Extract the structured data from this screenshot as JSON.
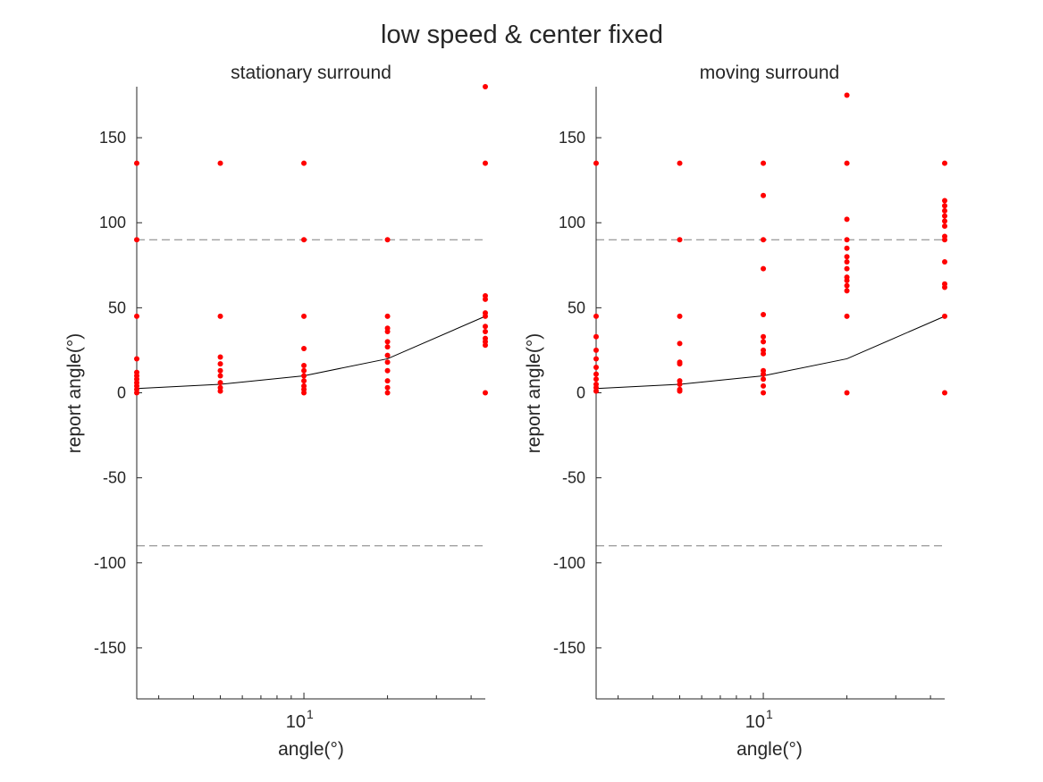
{
  "figure": {
    "title": "low speed & center fixed"
  },
  "style": {
    "point_color": "#ff0000",
    "line_color": "#000000",
    "ref_line_color": "#7f7f7f",
    "axis_color": "#262626"
  },
  "chart_data": [
    {
      "type": "scatter",
      "title": "stationary surround",
      "xlabel": "angle(°)",
      "ylabel": "report angle(°)",
      "xscale": "log",
      "xlim": [
        2.5,
        45
      ],
      "ylim": [
        -180,
        180
      ],
      "yticks": [
        -150,
        -100,
        -50,
        0,
        50,
        100,
        150
      ],
      "xtick_major": {
        "value": 10,
        "base": "10",
        "exponent": "1"
      },
      "grid": false,
      "reference_lines_y": [
        90,
        -90
      ],
      "mean_line": {
        "x": [
          2.5,
          5,
          10,
          20,
          45
        ],
        "y": [
          2.5,
          5,
          10,
          20,
          45
        ]
      },
      "points": [
        [
          2.5,
          135
        ],
        [
          2.5,
          90
        ],
        [
          2.5,
          45
        ],
        [
          2.5,
          20
        ],
        [
          2.5,
          12
        ],
        [
          2.5,
          10
        ],
        [
          2.5,
          8
        ],
        [
          2.5,
          6
        ],
        [
          2.5,
          4
        ],
        [
          2.5,
          2
        ],
        [
          2.5,
          0
        ],
        [
          5,
          135
        ],
        [
          5,
          45
        ],
        [
          5,
          21
        ],
        [
          5,
          17
        ],
        [
          5,
          13
        ],
        [
          5,
          10
        ],
        [
          5,
          6
        ],
        [
          5,
          3
        ],
        [
          5,
          1
        ],
        [
          10,
          135
        ],
        [
          10,
          90
        ],
        [
          10,
          45
        ],
        [
          10,
          26
        ],
        [
          10,
          16
        ],
        [
          10,
          13
        ],
        [
          10,
          10
        ],
        [
          10,
          7
        ],
        [
          10,
          4
        ],
        [
          10,
          2
        ],
        [
          10,
          0
        ],
        [
          20,
          90
        ],
        [
          20,
          45
        ],
        [
          20,
          38
        ],
        [
          20,
          36
        ],
        [
          20,
          30
        ],
        [
          20,
          27
        ],
        [
          20,
          22
        ],
        [
          20,
          18
        ],
        [
          20,
          13
        ],
        [
          20,
          7
        ],
        [
          20,
          3
        ],
        [
          20,
          0
        ],
        [
          45,
          180
        ],
        [
          45,
          135
        ],
        [
          45,
          57
        ],
        [
          45,
          55
        ],
        [
          45,
          47
        ],
        [
          45,
          45
        ],
        [
          45,
          39
        ],
        [
          45,
          36
        ],
        [
          45,
          32
        ],
        [
          45,
          30
        ],
        [
          45,
          28
        ],
        [
          45,
          0
        ]
      ]
    },
    {
      "type": "scatter",
      "title": "moving surround",
      "xlabel": "angle(°)",
      "ylabel": "report angle(°)",
      "xscale": "log",
      "xlim": [
        2.5,
        45
      ],
      "ylim": [
        -180,
        180
      ],
      "yticks": [
        -150,
        -100,
        -50,
        0,
        50,
        100,
        150
      ],
      "xtick_major": {
        "value": 10,
        "base": "10",
        "exponent": "1"
      },
      "grid": false,
      "reference_lines_y": [
        90,
        -90
      ],
      "mean_line": {
        "x": [
          2.5,
          5,
          10,
          20,
          45
        ],
        "y": [
          2.5,
          5,
          10,
          20,
          45
        ]
      },
      "points": [
        [
          2.5,
          135
        ],
        [
          2.5,
          45
        ],
        [
          2.5,
          33
        ],
        [
          2.5,
          25
        ],
        [
          2.5,
          20
        ],
        [
          2.5,
          15
        ],
        [
          2.5,
          11
        ],
        [
          2.5,
          8
        ],
        [
          2.5,
          5
        ],
        [
          2.5,
          3
        ],
        [
          2.5,
          1
        ],
        [
          5,
          135
        ],
        [
          5,
          90
        ],
        [
          5,
          45
        ],
        [
          5,
          29
        ],
        [
          5,
          18
        ],
        [
          5,
          17
        ],
        [
          5,
          7
        ],
        [
          5,
          5
        ],
        [
          5,
          2
        ],
        [
          5,
          1
        ],
        [
          10,
          135
        ],
        [
          10,
          116
        ],
        [
          10,
          90
        ],
        [
          10,
          73
        ],
        [
          10,
          46
        ],
        [
          10,
          33
        ],
        [
          10,
          30
        ],
        [
          10,
          25
        ],
        [
          10,
          23
        ],
        [
          10,
          13
        ],
        [
          10,
          11
        ],
        [
          10,
          8
        ],
        [
          10,
          4
        ],
        [
          10,
          0
        ],
        [
          20,
          175
        ],
        [
          20,
          135
        ],
        [
          20,
          102
        ],
        [
          20,
          90
        ],
        [
          20,
          85
        ],
        [
          20,
          80
        ],
        [
          20,
          77
        ],
        [
          20,
          73
        ],
        [
          20,
          68
        ],
        [
          20,
          66
        ],
        [
          20,
          63
        ],
        [
          20,
          60
        ],
        [
          20,
          45
        ],
        [
          20,
          0
        ],
        [
          45,
          135
        ],
        [
          45,
          113
        ],
        [
          45,
          110
        ],
        [
          45,
          107
        ],
        [
          45,
          104
        ],
        [
          45,
          101
        ],
        [
          45,
          98
        ],
        [
          45,
          92
        ],
        [
          45,
          90
        ],
        [
          45,
          77
        ],
        [
          45,
          64
        ],
        [
          45,
          62
        ],
        [
          45,
          45
        ],
        [
          45,
          0
        ]
      ]
    }
  ]
}
